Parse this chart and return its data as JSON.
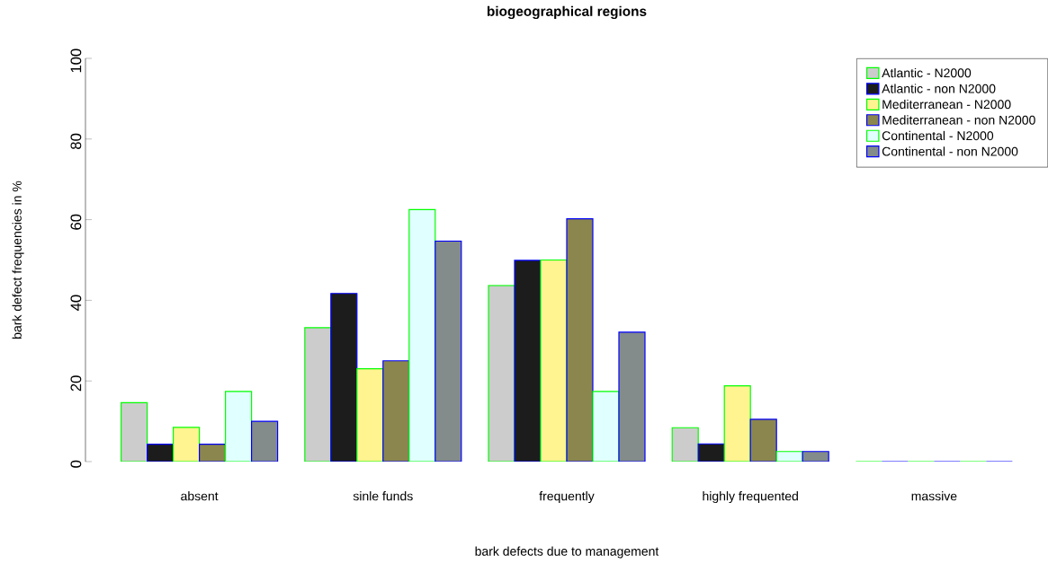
{
  "chart_data": {
    "type": "bar",
    "title": "biogeographical regions",
    "xlabel": "bark defects due to management",
    "ylabel": "bark defect frequencies in %",
    "categories": [
      "absent",
      "sinle funds",
      "frequently",
      "highly frequented",
      "massive"
    ],
    "series": [
      {
        "name": "Atlantic - N2000",
        "color": "#cccccc",
        "values": [
          14.6,
          33.2,
          43.7,
          8.4,
          0
        ]
      },
      {
        "name": "Atlantic - non N2000",
        "color": "#1c1c1c",
        "values": [
          4.3,
          41.7,
          49.9,
          4.4,
          0
        ]
      },
      {
        "name": "Mediterranean - N2000",
        "color": "#fff48f",
        "values": [
          8.5,
          23.0,
          50.0,
          18.8,
          0
        ]
      },
      {
        "name": "Mediterranean - non N2000",
        "color": "#8b864e",
        "values": [
          4.3,
          25.0,
          60.2,
          10.5,
          0
        ]
      },
      {
        "name": "Continental - N2000",
        "color": "#e0ffff",
        "values": [
          17.4,
          62.5,
          17.4,
          2.5,
          0
        ]
      },
      {
        "name": "Continental - non N2000",
        "color": "#838b8b",
        "values": [
          10.0,
          54.7,
          32.1,
          2.5,
          0
        ]
      }
    ],
    "ylim": [
      0,
      100
    ],
    "yticks": [
      0,
      20,
      40,
      60,
      80,
      100
    ],
    "grid": false,
    "legend": "top right"
  }
}
